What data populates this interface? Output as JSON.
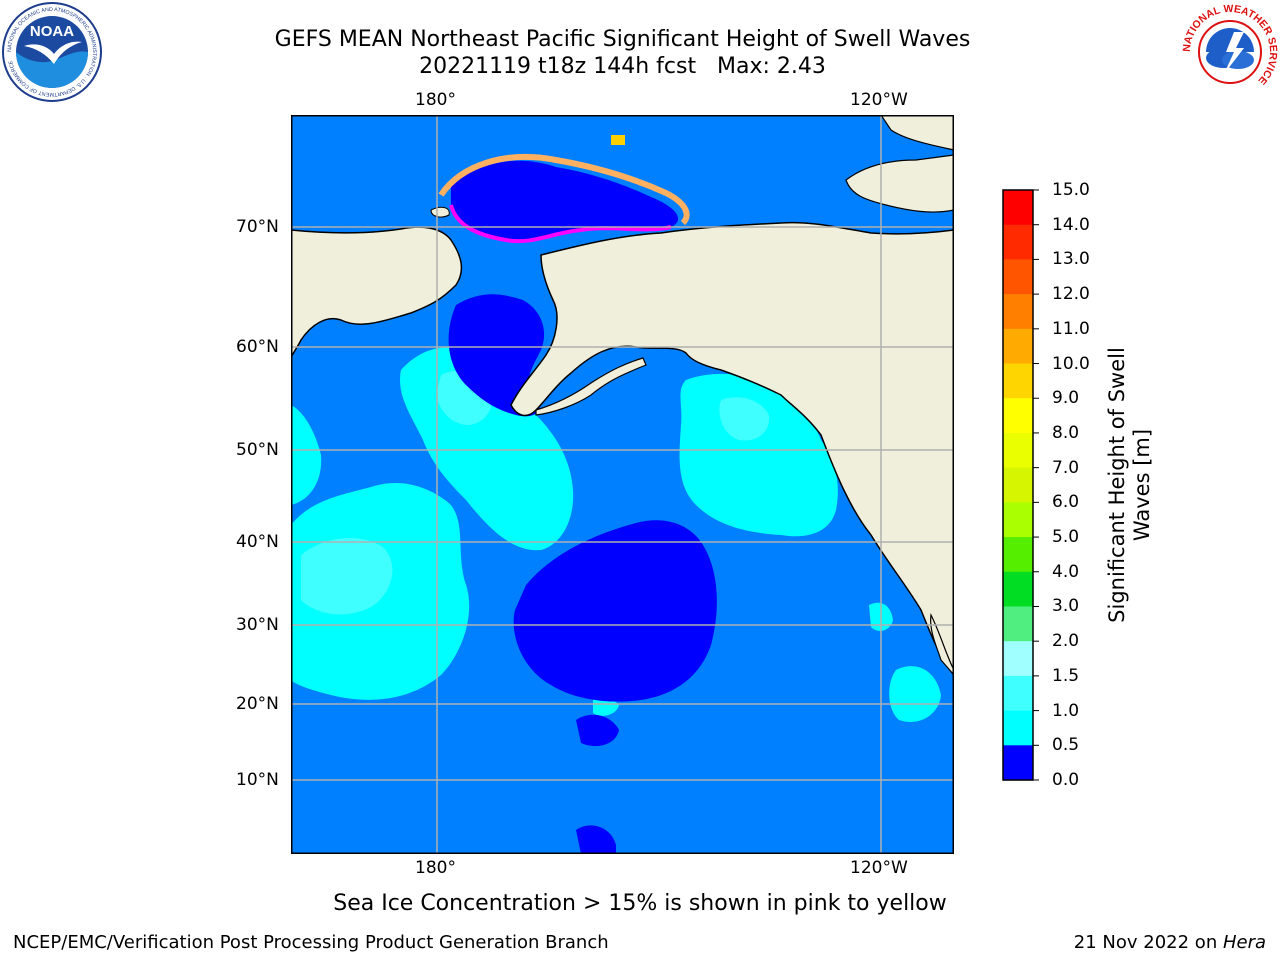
{
  "header": {
    "title_line1": "GEFS MEAN Northeast Pacific Significant Height of Swell Waves",
    "title_line2": "20221119 t18z 144h fcst   Max: 2.43"
  },
  "map": {
    "lon_labels_top": [
      "180°",
      "120°W"
    ],
    "lon_labels_bottom": [
      "180°",
      "120°W"
    ],
    "lat_labels": [
      "70°N",
      "60°N",
      "50°N",
      "40°N",
      "30°N",
      "20°N",
      "10°N"
    ],
    "ocean_low_color": "#0000ff",
    "ocean_mid_color": "#0080ff",
    "ocean_high_color": "#00ffff",
    "ocean_higher_color": "#40ffff",
    "land_color": "#efefdc",
    "ice_colors": [
      "#ff00ff",
      "#ff80c0",
      "#ffb060",
      "#ffd000"
    ]
  },
  "colorbar": {
    "label": "Significant Height of Swell Waves [m]",
    "ticks": [
      "15.0",
      "14.0",
      "13.0",
      "12.0",
      "11.0",
      "10.0",
      "9.0",
      "8.0",
      "7.0",
      "6.0",
      "5.0",
      "4.0",
      "3.0",
      "2.0",
      "1.5",
      "1.0",
      "0.5",
      "0.0"
    ],
    "colors": [
      "#ff0000",
      "#ff2a00",
      "#ff5500",
      "#ff8000",
      "#ffaa00",
      "#ffd500",
      "#ffff00",
      "#eaff00",
      "#d5f500",
      "#aaff00",
      "#55ee00",
      "#00dd22",
      "#50ee80",
      "#a0ffff",
      "#40ffff",
      "#00ffff",
      "#0080ff",
      "#0000ff"
    ]
  },
  "caption": "Sea Ice Concentration > 15% is shown in pink to yellow",
  "footer": {
    "left": "NCEP/EMC/Verification Post Processing Product Generation Branch",
    "right_prefix": "21 Nov 2022 on ",
    "right_host": "Hera"
  },
  "logos": {
    "noaa_text": "NOAA",
    "noaa_ring": "NATIONAL OCEANIC AND ATMOSPHERIC ADMINISTRATION · U.S. DEPARTMENT OF COMMERCE",
    "nws_ring": "NATIONAL WEATHER SERVICE"
  }
}
